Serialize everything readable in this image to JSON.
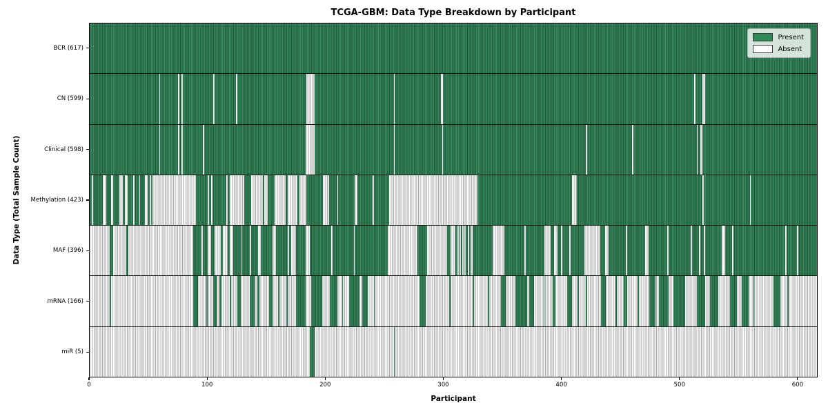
{
  "chart_data": {
    "type": "heatmap",
    "title": "TCGA-GBM: Data Type Breakdown by Participant",
    "xlabel": "Participant",
    "ylabel": "Data Type (Total Sample Count)",
    "n_participants": 617,
    "x_ticks": [
      0,
      100,
      200,
      300,
      400,
      500,
      600
    ],
    "grid": false,
    "legend_position": "upper right",
    "colors": {
      "present": "#2e8b57",
      "absent": "#ffffff",
      "present_stripe": "#1d5737",
      "absent_stripe": "#a9a9a9",
      "axis": "#000000"
    },
    "legend": [
      {
        "label": "Present",
        "color": "#2e8b57"
      },
      {
        "label": "Absent",
        "color": "#ffffff"
      }
    ],
    "rows": [
      {
        "label": "BCR (617)",
        "data_type": "BCR",
        "present_count": 617,
        "base": "present",
        "overlay": "absent",
        "runs": []
      },
      {
        "label": "CN (599)",
        "data_type": "CN",
        "present_count": 599,
        "base": "present",
        "overlay": "absent",
        "runs": [
          [
            59,
            1
          ],
          [
            75,
            1
          ],
          [
            78,
            1
          ],
          [
            105,
            1
          ],
          [
            124,
            1
          ],
          [
            184,
            7
          ],
          [
            258,
            1
          ],
          [
            298,
            2
          ],
          [
            513,
            1
          ],
          [
            520,
            2
          ]
        ]
      },
      {
        "label": "Clinical (598)",
        "data_type": "Clinical",
        "present_count": 598,
        "base": "present",
        "overlay": "absent",
        "runs": [
          [
            59,
            1
          ],
          [
            75,
            1
          ],
          [
            78,
            1
          ],
          [
            96,
            1
          ],
          [
            183,
            8
          ],
          [
            258,
            1
          ],
          [
            299,
            1
          ],
          [
            421,
            1
          ],
          [
            460,
            1
          ],
          [
            515,
            1
          ],
          [
            518,
            2
          ]
        ]
      },
      {
        "label": "Methylation (423)",
        "data_type": "Methylation",
        "present_count": 423,
        "base": "present",
        "overlay": "absent",
        "runs": [
          [
            2,
            1
          ],
          [
            11,
            3
          ],
          [
            18,
            2
          ],
          [
            25,
            3
          ],
          [
            30,
            2
          ],
          [
            37,
            1
          ],
          [
            42,
            1
          ],
          [
            47,
            2
          ],
          [
            51,
            1
          ],
          [
            53,
            37
          ],
          [
            100,
            1
          ],
          [
            103,
            1
          ],
          [
            116,
            1
          ],
          [
            119,
            12
          ],
          [
            137,
            10
          ],
          [
            148,
            3
          ],
          [
            157,
            9
          ],
          [
            168,
            8
          ],
          [
            178,
            6
          ],
          [
            198,
            5
          ],
          [
            210,
            1
          ],
          [
            225,
            2
          ],
          [
            240,
            1
          ],
          [
            254,
            75
          ],
          [
            409,
            4
          ],
          [
            520,
            1
          ],
          [
            560,
            1
          ]
        ]
      },
      {
        "label": "MAF (396)",
        "data_type": "MAF",
        "present_count": 396,
        "base": "present",
        "overlay": "absent",
        "runs": [
          [
            0,
            17
          ],
          [
            20,
            11
          ],
          [
            33,
            55
          ],
          [
            95,
            1
          ],
          [
            100,
            3
          ],
          [
            106,
            5
          ],
          [
            113,
            4
          ],
          [
            119,
            3
          ],
          [
            128,
            1
          ],
          [
            136,
            1
          ],
          [
            143,
            2
          ],
          [
            155,
            3
          ],
          [
            168,
            1
          ],
          [
            171,
            4
          ],
          [
            183,
            4
          ],
          [
            205,
            1
          ],
          [
            224,
            1
          ],
          [
            253,
            25
          ],
          [
            286,
            17
          ],
          [
            306,
            4
          ],
          [
            312,
            1
          ],
          [
            314,
            1
          ],
          [
            316,
            1
          ],
          [
            318,
            1
          ],
          [
            321,
            1
          ],
          [
            323,
            2
          ],
          [
            342,
            10
          ],
          [
            369,
            1
          ],
          [
            386,
            5
          ],
          [
            394,
            3
          ],
          [
            400,
            1
          ],
          [
            407,
            1
          ],
          [
            420,
            13
          ],
          [
            437,
            3
          ],
          [
            455,
            1
          ],
          [
            471,
            3
          ],
          [
            490,
            1
          ],
          [
            510,
            1
          ],
          [
            517,
            1
          ],
          [
            521,
            1
          ],
          [
            536,
            3
          ],
          [
            545,
            1
          ],
          [
            590,
            1
          ],
          [
            600,
            1
          ]
        ]
      },
      {
        "label": "mRNA (166)",
        "data_type": "mRNA",
        "present_count": 166,
        "base": "absent",
        "overlay": "present",
        "runs": [
          [
            17,
            1
          ],
          [
            88,
            4
          ],
          [
            99,
            1
          ],
          [
            105,
            3
          ],
          [
            110,
            2
          ],
          [
            119,
            1
          ],
          [
            125,
            3
          ],
          [
            136,
            4
          ],
          [
            142,
            2
          ],
          [
            152,
            3
          ],
          [
            160,
            1
          ],
          [
            167,
            1
          ],
          [
            175,
            8
          ],
          [
            188,
            9
          ],
          [
            204,
            6
          ],
          [
            214,
            1
          ],
          [
            220,
            9
          ],
          [
            231,
            5
          ],
          [
            241,
            1
          ],
          [
            280,
            5
          ],
          [
            305,
            1
          ],
          [
            325,
            1
          ],
          [
            338,
            1
          ],
          [
            349,
            4
          ],
          [
            361,
            10
          ],
          [
            373,
            4
          ],
          [
            385,
            1
          ],
          [
            393,
            2
          ],
          [
            405,
            4
          ],
          [
            414,
            1
          ],
          [
            421,
            1
          ],
          [
            434,
            4
          ],
          [
            446,
            1
          ],
          [
            453,
            3
          ],
          [
            465,
            1
          ],
          [
            475,
            5
          ],
          [
            483,
            8
          ],
          [
            495,
            10
          ],
          [
            515,
            7
          ],
          [
            526,
            7
          ],
          [
            543,
            6
          ],
          [
            553,
            6
          ],
          [
            563,
            1
          ],
          [
            580,
            6
          ],
          [
            592,
            1
          ]
        ]
      },
      {
        "label": "miR (5)",
        "data_type": "miR",
        "present_count": 5,
        "base": "absent",
        "overlay": "present",
        "runs": [
          [
            187,
            4
          ],
          [
            258,
            1
          ]
        ]
      }
    ]
  }
}
